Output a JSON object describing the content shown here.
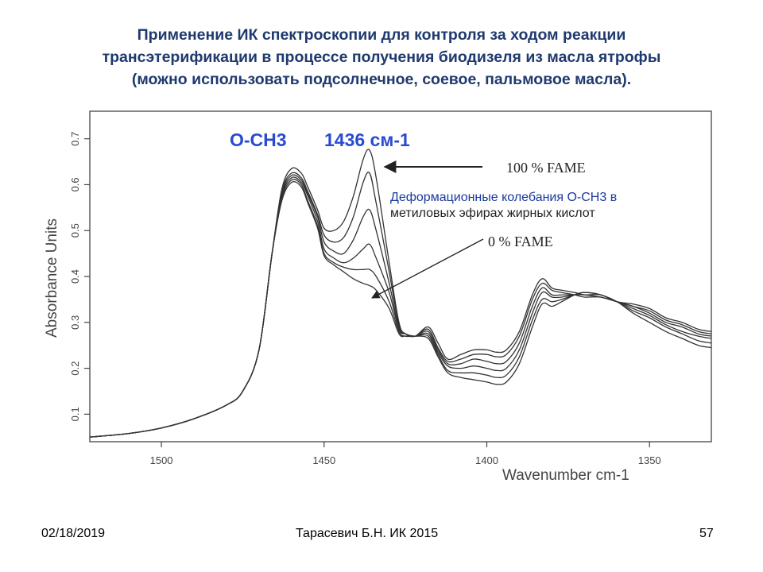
{
  "slide": {
    "title_lines": [
      "Применение ИК спектроскопии для контроля за ходом реакции",
      "трансэтерификации в процессе получения биодизеля из масла ятрофы",
      "(можно использовать подсолнечное, соевое, пальмовое масла)."
    ],
    "footer": {
      "date": "02/18/2019",
      "author": "Тарасевич Б.Н.  ИК 2015",
      "page": "57"
    }
  },
  "chart_data": {
    "type": "line",
    "xlabel": "Wavenumber cm-1",
    "ylabel": "Absorbance Units",
    "xlim": [
      1522,
      1331
    ],
    "ylim": [
      0.04,
      0.76
    ],
    "x_reversed": true,
    "x_ticks": [
      1500,
      1450,
      1400,
      1350
    ],
    "y_ticks": [
      0.1,
      0.2,
      0.3,
      0.4,
      0.5,
      0.6,
      0.7
    ],
    "grid": false,
    "line_color": "#333333",
    "x": [
      1522,
      1510,
      1500,
      1490,
      1480,
      1475,
      1470,
      1466,
      1463,
      1460,
      1457,
      1455,
      1452,
      1450,
      1447,
      1444,
      1441,
      1438,
      1436,
      1434,
      1430,
      1427,
      1425,
      1422,
      1418,
      1415,
      1412,
      1408,
      1404,
      1400,
      1397,
      1394,
      1390,
      1386,
      1383,
      1380,
      1377,
      1373,
      1370,
      1365,
      1360,
      1355,
      1350,
      1345,
      1340,
      1335,
      1331
    ],
    "series": [
      {
        "values": [
          0.05,
          0.058,
          0.07,
          0.09,
          0.12,
          0.15,
          0.24,
          0.45,
          0.59,
          0.635,
          0.625,
          0.595,
          0.545,
          0.505,
          0.5,
          0.52,
          0.575,
          0.655,
          0.675,
          0.615,
          0.43,
          0.3,
          0.275,
          0.27,
          0.29,
          0.255,
          0.22,
          0.23,
          0.24,
          0.24,
          0.235,
          0.24,
          0.28,
          0.36,
          0.395,
          0.375,
          0.37,
          0.365,
          0.36,
          0.36,
          0.345,
          0.34,
          0.33,
          0.31,
          0.3,
          0.285,
          0.28
        ]
      },
      {
        "values": [
          0.05,
          0.058,
          0.07,
          0.09,
          0.12,
          0.15,
          0.24,
          0.45,
          0.585,
          0.625,
          0.615,
          0.585,
          0.535,
          0.49,
          0.475,
          0.485,
          0.53,
          0.605,
          0.625,
          0.56,
          0.41,
          0.295,
          0.275,
          0.27,
          0.285,
          0.245,
          0.215,
          0.22,
          0.23,
          0.23,
          0.225,
          0.23,
          0.27,
          0.35,
          0.385,
          0.37,
          0.365,
          0.36,
          0.355,
          0.355,
          0.345,
          0.335,
          0.325,
          0.305,
          0.295,
          0.28,
          0.275
        ]
      },
      {
        "values": [
          0.05,
          0.058,
          0.07,
          0.09,
          0.12,
          0.15,
          0.24,
          0.45,
          0.58,
          0.62,
          0.61,
          0.58,
          0.53,
          0.475,
          0.455,
          0.45,
          0.48,
          0.53,
          0.545,
          0.5,
          0.385,
          0.29,
          0.275,
          0.27,
          0.28,
          0.24,
          0.21,
          0.21,
          0.22,
          0.215,
          0.21,
          0.215,
          0.255,
          0.335,
          0.375,
          0.36,
          0.36,
          0.36,
          0.36,
          0.355,
          0.345,
          0.335,
          0.32,
          0.3,
          0.29,
          0.275,
          0.27
        ]
      },
      {
        "values": [
          0.05,
          0.058,
          0.07,
          0.09,
          0.12,
          0.15,
          0.24,
          0.45,
          0.575,
          0.615,
          0.605,
          0.575,
          0.52,
          0.46,
          0.44,
          0.43,
          0.44,
          0.46,
          0.47,
          0.44,
          0.365,
          0.285,
          0.275,
          0.27,
          0.275,
          0.235,
          0.205,
          0.2,
          0.205,
          0.2,
          0.195,
          0.2,
          0.24,
          0.32,
          0.365,
          0.355,
          0.355,
          0.36,
          0.36,
          0.355,
          0.345,
          0.33,
          0.315,
          0.295,
          0.28,
          0.27,
          0.265
        ]
      },
      {
        "values": [
          0.05,
          0.058,
          0.07,
          0.09,
          0.12,
          0.15,
          0.24,
          0.45,
          0.57,
          0.61,
          0.6,
          0.565,
          0.51,
          0.45,
          0.43,
          0.42,
          0.415,
          0.415,
          0.415,
          0.4,
          0.345,
          0.28,
          0.27,
          0.27,
          0.27,
          0.23,
          0.195,
          0.19,
          0.19,
          0.185,
          0.18,
          0.185,
          0.225,
          0.305,
          0.35,
          0.345,
          0.35,
          0.36,
          0.365,
          0.36,
          0.345,
          0.325,
          0.31,
          0.29,
          0.275,
          0.26,
          0.255
        ]
      },
      {
        "values": [
          0.05,
          0.058,
          0.07,
          0.09,
          0.12,
          0.15,
          0.24,
          0.45,
          0.565,
          0.605,
          0.595,
          0.56,
          0.505,
          0.445,
          0.425,
          0.41,
          0.395,
          0.385,
          0.38,
          0.37,
          0.33,
          0.275,
          0.27,
          0.27,
          0.265,
          0.225,
          0.19,
          0.18,
          0.175,
          0.17,
          0.165,
          0.17,
          0.21,
          0.29,
          0.34,
          0.335,
          0.345,
          0.36,
          0.365,
          0.36,
          0.345,
          0.32,
          0.3,
          0.28,
          0.265,
          0.25,
          0.245
        ]
      }
    ],
    "annotations": {
      "group_label": "O-CH3",
      "peak_label": "1436 см-1",
      "top_label": "100 % FAME",
      "bottom_label": "0 % FAME",
      "note_line1": "Деформационные колебания O-CH3 в",
      "note_line2": "метиловых эфирах жирных кислот"
    }
  }
}
